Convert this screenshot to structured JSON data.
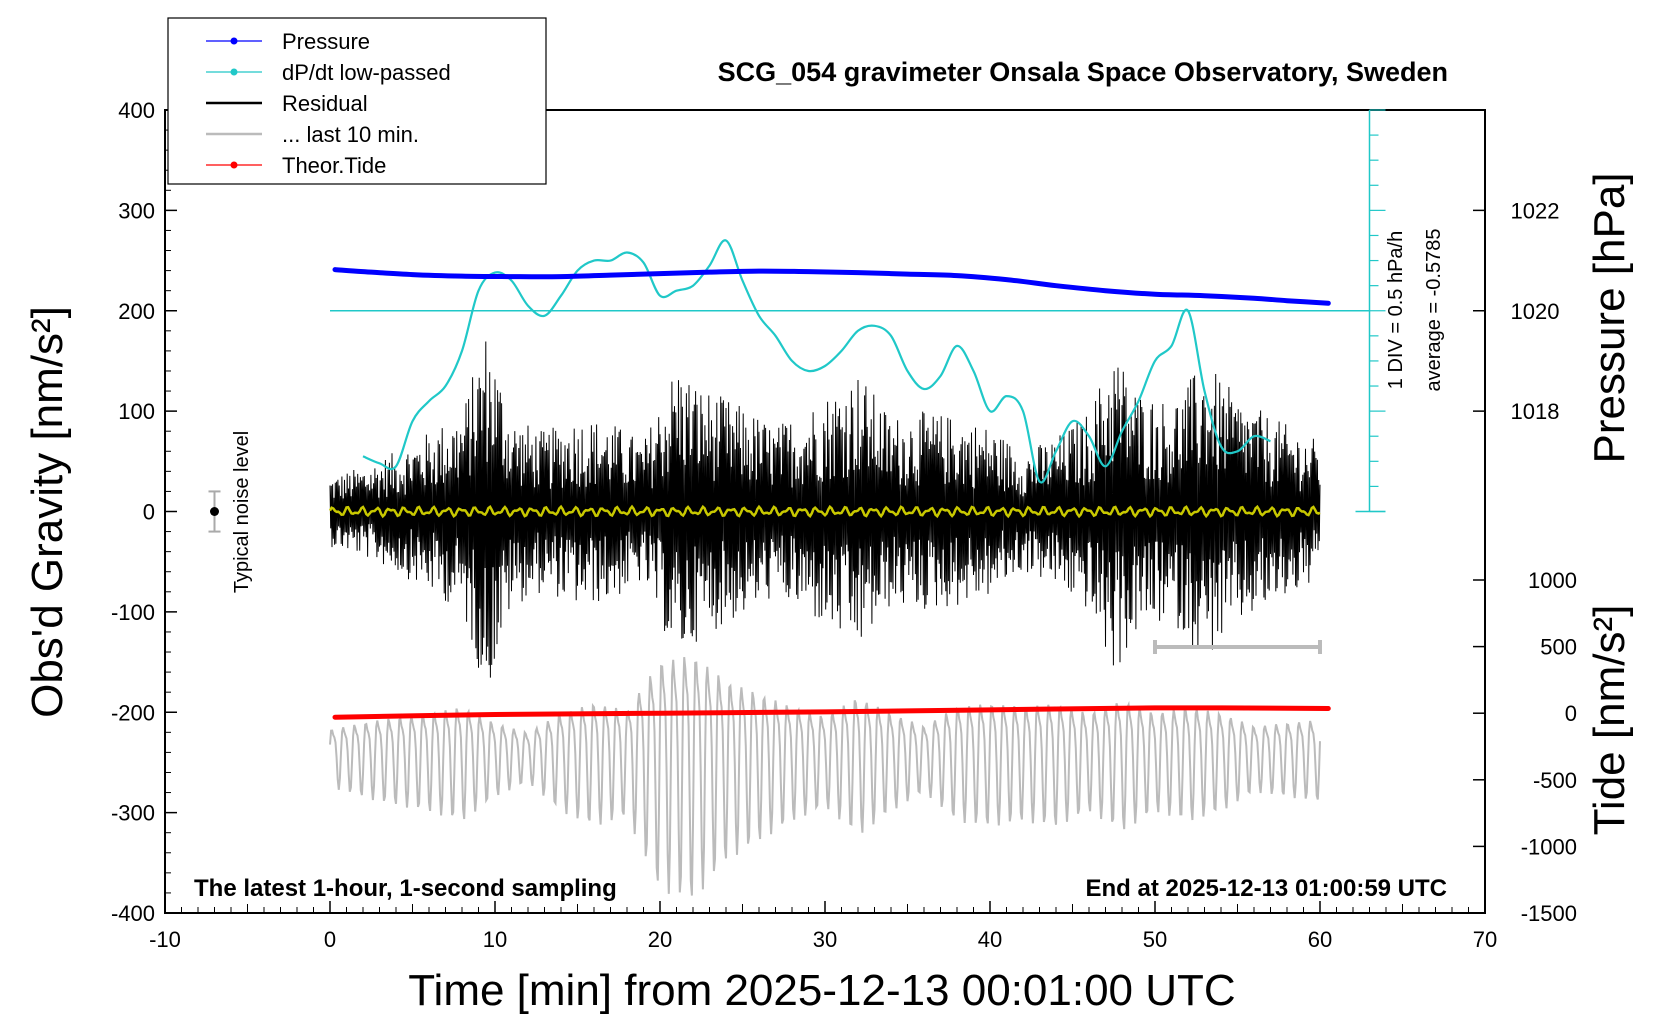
{
  "chart_data": {
    "type": "line",
    "title": "SCG_054 gravimeter Onsala Space Observatory, Sweden",
    "xlabel": "Time [min] from 2025-12-13 00:01:00 UTC",
    "ylabel_left": "Obs'd Gravity [nm/s²]",
    "ylabel_right_top": "Pressure [hPa]",
    "ylabel_right_bottom": "Tide [nm/s²]",
    "xlim": [
      -10,
      70
    ],
    "ylim": [
      -400,
      400
    ],
    "pressure_ylim": [
      1016,
      1024
    ],
    "tide_ylim": [
      -1500,
      1500
    ],
    "x_ticks": [
      -10,
      0,
      10,
      20,
      30,
      40,
      50,
      60,
      70
    ],
    "x_tick_labels": [
      "-10",
      "0",
      "10",
      "20",
      "30",
      "40",
      "50",
      "60",
      "70"
    ],
    "y_ticks": [
      -400,
      -300,
      -200,
      -100,
      0,
      100,
      200,
      300,
      400
    ],
    "y_tick_labels": [
      "-400",
      "-300",
      "-200",
      "-100",
      "0",
      "100",
      "200",
      "300",
      "400"
    ],
    "pressure_ticks": [
      1018,
      1020,
      1022
    ],
    "pressure_tick_labels": [
      "1018",
      "1020",
      "1022"
    ],
    "tide_ticks": [
      -1500,
      -1000,
      -500,
      0,
      500,
      1000
    ],
    "tide_tick_labels": [
      "-1500",
      "-1000",
      "-500",
      "0",
      "500",
      "1000"
    ],
    "legend": {
      "position": "top-left",
      "entries": [
        {
          "label": "Pressure",
          "color": "#0000ff",
          "style": "line-dot"
        },
        {
          "label": "dP/dt low-passed",
          "color": "#20c8c8",
          "style": "line-dot"
        },
        {
          "label": "Residual",
          "color": "#000000",
          "style": "line"
        },
        {
          "label": "... last 10 min.",
          "color": "#bbbbbb",
          "style": "line"
        },
        {
          "label": "Theor.Tide",
          "color": "#ff0000",
          "style": "line-dot"
        }
      ]
    },
    "annotations": {
      "bottom_left": "The latest 1-hour, 1-second sampling",
      "bottom_right": "End at 2025-12-13 01:00:59 UTC",
      "noise_label": "Typical noise level",
      "div_label": "1 DIV = 0.5 hPa/h",
      "average_label": "average = -0.5785"
    },
    "noise_bar": {
      "x": -7,
      "y": 0,
      "half_range": 20
    },
    "last10_bar": {
      "x_start": 50,
      "x_end": 60,
      "y": -135
    },
    "dpdt_scale": {
      "x": 63,
      "y_bottom": 0,
      "y_top": 400,
      "divisions": 16
    },
    "dpdt_reference_line": {
      "y": 200,
      "x_start": 0,
      "x_end": 63
    },
    "series": [
      {
        "name": "Pressure",
        "axis": "pressure",
        "color": "#0000ff",
        "x": [
          0.3,
          2,
          5,
          8,
          11,
          14,
          17,
          20,
          23,
          26,
          29,
          32,
          35,
          38,
          41,
          44,
          47,
          50,
          53,
          56,
          58,
          60.5
        ],
        "values": [
          1020.82,
          1020.78,
          1020.72,
          1020.69,
          1020.68,
          1020.68,
          1020.71,
          1020.74,
          1020.77,
          1020.79,
          1020.78,
          1020.76,
          1020.73,
          1020.7,
          1020.62,
          1020.5,
          1020.4,
          1020.33,
          1020.3,
          1020.25,
          1020.2,
          1020.15
        ]
      },
      {
        "name": "dP/dt low-passed",
        "axis": "left",
        "color": "#20c8c8",
        "x": [
          2,
          3,
          4,
          5,
          6,
          7,
          8,
          9,
          10,
          11,
          12,
          13,
          14,
          15,
          16,
          17,
          18,
          19,
          20,
          21,
          22,
          23,
          24,
          25,
          26,
          27,
          28,
          29,
          30,
          31,
          32,
          33,
          34,
          35,
          36,
          37,
          38,
          39,
          40,
          41,
          42,
          43,
          44,
          45,
          46,
          47,
          48,
          49,
          50,
          51,
          52,
          53,
          54,
          55,
          56,
          57
        ],
        "values": [
          55,
          48,
          45,
          90,
          110,
          125,
          160,
          220,
          238,
          230,
          205,
          195,
          215,
          240,
          250,
          250,
          258,
          248,
          215,
          220,
          225,
          245,
          270,
          230,
          195,
          175,
          150,
          140,
          145,
          160,
          180,
          185,
          175,
          140,
          122,
          135,
          165,
          140,
          100,
          115,
          100,
          30,
          60,
          90,
          75,
          45,
          80,
          110,
          150,
          165,
          200,
          120,
          65,
          60,
          75,
          70
        ]
      },
      {
        "name": "Theor.Tide",
        "axis": "tide",
        "color": "#ff0000",
        "x": [
          0.3,
          10,
          20,
          30,
          40,
          50,
          60.5
        ],
        "values": [
          -30,
          -10,
          0,
          10,
          25,
          40,
          35
        ]
      },
      {
        "name": "Residual",
        "axis": "left",
        "color": "#000000",
        "x_range": [
          0,
          60
        ],
        "envelope": [
          {
            "x": 0,
            "amp": 35
          },
          {
            "x": 2,
            "amp": 45
          },
          {
            "x": 4,
            "amp": 60
          },
          {
            "x": 6,
            "amp": 80
          },
          {
            "x": 8,
            "amp": 100
          },
          {
            "x": 9.5,
            "amp": 185
          },
          {
            "x": 11,
            "amp": 95
          },
          {
            "x": 13,
            "amp": 80
          },
          {
            "x": 15,
            "amp": 95
          },
          {
            "x": 17,
            "amp": 90
          },
          {
            "x": 19,
            "amp": 70
          },
          {
            "x": 21,
            "amp": 150
          },
          {
            "x": 22.5,
            "amp": 125
          },
          {
            "x": 25,
            "amp": 105
          },
          {
            "x": 27,
            "amp": 85
          },
          {
            "x": 29,
            "amp": 105
          },
          {
            "x": 32,
            "amp": 140
          },
          {
            "x": 34,
            "amp": 95
          },
          {
            "x": 36,
            "amp": 100
          },
          {
            "x": 38,
            "amp": 95
          },
          {
            "x": 40,
            "amp": 85
          },
          {
            "x": 42,
            "amp": 60
          },
          {
            "x": 44,
            "amp": 75
          },
          {
            "x": 46,
            "amp": 100
          },
          {
            "x": 47.5,
            "amp": 165
          },
          {
            "x": 49,
            "amp": 120
          },
          {
            "x": 51,
            "amp": 110
          },
          {
            "x": 53,
            "amp": 150
          },
          {
            "x": 55,
            "amp": 115
          },
          {
            "x": 57,
            "amp": 95
          },
          {
            "x": 60,
            "amp": 70
          }
        ]
      },
      {
        "name": "Residual smoothed",
        "axis": "left",
        "color": "#c8c800",
        "x_range": [
          0,
          60
        ],
        "amplitude": 3
      },
      {
        "name": "... last 10 min.",
        "axis": "left",
        "color": "#bbbbbb",
        "x_range": [
          0,
          60
        ],
        "offset": -240,
        "envelope": [
          {
            "x": 0,
            "amp": 35
          },
          {
            "x": 3,
            "amp": 50
          },
          {
            "x": 6,
            "amp": 60
          },
          {
            "x": 8,
            "amp": 70
          },
          {
            "x": 10,
            "amp": 45
          },
          {
            "x": 12,
            "amp": 30
          },
          {
            "x": 14,
            "amp": 60
          },
          {
            "x": 16,
            "amp": 75
          },
          {
            "x": 18,
            "amp": 65
          },
          {
            "x": 20,
            "amp": 140
          },
          {
            "x": 22,
            "amp": 150
          },
          {
            "x": 24,
            "amp": 110
          },
          {
            "x": 26,
            "amp": 90
          },
          {
            "x": 28,
            "amp": 70
          },
          {
            "x": 30,
            "amp": 55
          },
          {
            "x": 32,
            "amp": 85
          },
          {
            "x": 34,
            "amp": 60
          },
          {
            "x": 36,
            "amp": 40
          },
          {
            "x": 38,
            "amp": 70
          },
          {
            "x": 40,
            "amp": 75
          },
          {
            "x": 42,
            "amp": 70
          },
          {
            "x": 44,
            "amp": 75
          },
          {
            "x": 46,
            "amp": 60
          },
          {
            "x": 48,
            "amp": 80
          },
          {
            "x": 50,
            "amp": 60
          },
          {
            "x": 52,
            "amp": 70
          },
          {
            "x": 54,
            "amp": 60
          },
          {
            "x": 56,
            "amp": 40
          },
          {
            "x": 58,
            "amp": 45
          },
          {
            "x": 60,
            "amp": 50
          }
        ]
      }
    ]
  }
}
